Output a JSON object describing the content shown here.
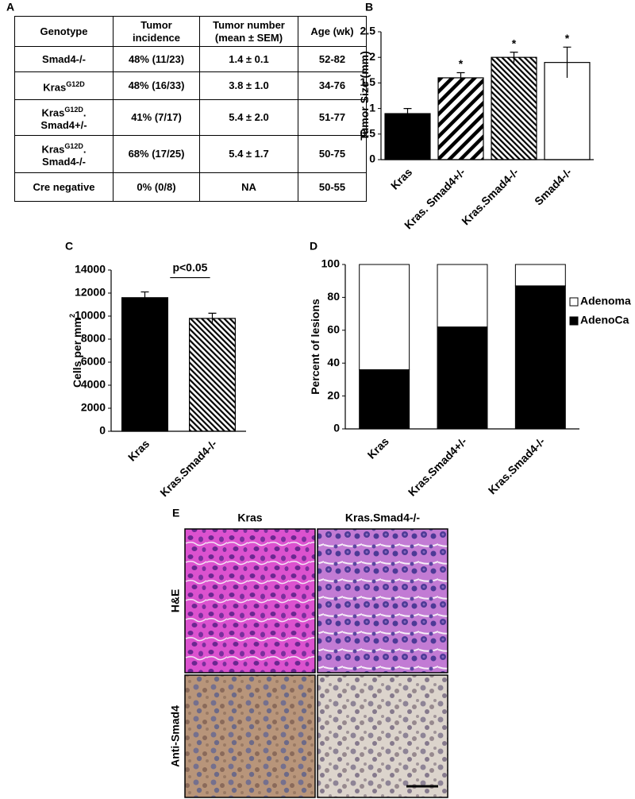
{
  "panel_labels": [
    "A",
    "B",
    "C",
    "D",
    "E"
  ],
  "table": {
    "header": [
      "Genotype",
      "Tumor incidence",
      "Tumor number (mean ± SEM)",
      "Age (wk)"
    ],
    "rows": [
      [
        "Smad4-/-",
        "48% (11/23)",
        "1.4 ± 0.1",
        "52-82"
      ],
      [
        {
          "main": "Kras",
          "sup": "G12D"
        },
        "48% (16/33)",
        "3.8 ± 1.0",
        "34-76"
      ],
      [
        {
          "main": "Kras",
          "sup": "G12D",
          "tail": ".",
          "line2": "Smad4+/-"
        },
        "41% (7/17)",
        "5.4 ± 2.0",
        "51-77"
      ],
      [
        {
          "main": "Kras",
          "sup": "G12D",
          "tail": ".",
          "line2": "Smad4-/-"
        },
        "68% (17/25)",
        "5.4 ± 1.7",
        "50-75"
      ],
      [
        "Cre negative",
        "0% (0/8)",
        "NA",
        "50-55"
      ]
    ]
  },
  "chart_data": [
    {
      "type": "bar",
      "y_label": "Tumor Size (mm)",
      "categories": [
        "Kras",
        "Kras. Smad4+/-",
        "Kras.Smad4-/-",
        "Smad4-/-"
      ],
      "values": [
        0.9,
        1.6,
        2.0,
        1.9
      ],
      "errors": [
        0.1,
        0.1,
        0.1,
        0.3
      ],
      "markers": [
        null,
        "*",
        "*",
        "*"
      ],
      "colors": [
        "#000000",
        "#ffffff",
        "#ffffff",
        "#ffffff"
      ],
      "patterns": [
        "none",
        "wide-hatch",
        "fine-hatch",
        "none"
      ],
      "ylim": [
        0,
        2.5
      ],
      "yticks": [
        0,
        0.5,
        1,
        1.5,
        2,
        2.5
      ],
      "grid": false
    },
    {
      "type": "bar",
      "y_label": "Cells per mm",
      "y_label_sup": "2",
      "categories": [
        "Kras",
        "Kras.Smad4-/-"
      ],
      "values": [
        11600,
        9800
      ],
      "errors": [
        500,
        450
      ],
      "colors": [
        "#000000",
        "#ffffff"
      ],
      "patterns": [
        "none",
        "fine-hatch"
      ],
      "annotation": {
        "text": "p<0.05",
        "between": [
          0,
          1
        ]
      },
      "ylim": [
        0,
        14000
      ],
      "yticks": [
        0,
        2000,
        4000,
        6000,
        8000,
        10000,
        12000,
        14000
      ],
      "grid": false
    },
    {
      "type": "stacked_bar",
      "y_label": "Percent of lesions",
      "categories": [
        "Kras",
        "Kras.Smad4+/-",
        "Kras.Smad4-/-"
      ],
      "series": [
        {
          "name": "AdenoCa",
          "color": "#000000",
          "values": [
            36,
            62,
            87
          ]
        },
        {
          "name": "Adenoma",
          "color": "#ffffff",
          "values": [
            64,
            38,
            13
          ]
        }
      ],
      "legend": "right",
      "ylim": [
        0,
        100
      ],
      "yticks": [
        0,
        20,
        40,
        60,
        80,
        100
      ],
      "grid": false
    }
  ],
  "micrographs": {
    "columns": [
      "Kras",
      "Kras.Smad4-/-"
    ],
    "rows": [
      "H&E",
      "Anti-Smad4"
    ]
  }
}
